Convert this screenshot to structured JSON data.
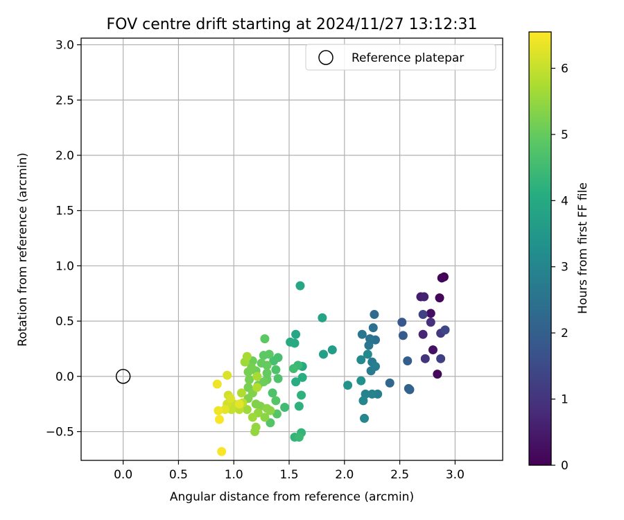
{
  "chart_data": {
    "type": "scatter",
    "title": "FOV centre drift starting at 2024/11/27 13:12:31",
    "xlabel": "Angular distance from reference (arcmin)",
    "ylabel": "Rotation from reference (arcmin)",
    "xlim": [
      -0.38,
      3.43
    ],
    "ylim": [
      -0.76,
      3.06
    ],
    "xticks": [
      0.0,
      0.5,
      1.0,
      1.5,
      2.0,
      2.5,
      3.0
    ],
    "xtick_labels": [
      "0.0",
      "0.5",
      "1.0",
      "1.5",
      "2.0",
      "2.5",
      "3.0"
    ],
    "yticks": [
      -0.5,
      0.0,
      0.5,
      1.0,
      1.5,
      2.0,
      2.5,
      3.0
    ],
    "ytick_labels": [
      "−0.5",
      "0.0",
      "0.5",
      "1.0",
      "1.5",
      "2.0",
      "2.5",
      "3.0"
    ],
    "grid": true,
    "colormap": "viridis",
    "colorbar": {
      "label": "Hours from first FF file",
      "range": [
        0,
        6.55
      ],
      "ticks": [
        0,
        1,
        2,
        3,
        4,
        5,
        6
      ],
      "tick_labels": [
        "0",
        "1",
        "2",
        "3",
        "4",
        "5",
        "6"
      ]
    },
    "legend": {
      "position": "top-right",
      "entries": [
        {
          "label": "Reference platepar",
          "marker": "open-circle"
        }
      ]
    },
    "reference_point": {
      "x": 0.0,
      "y": 0.0
    },
    "points": [
      {
        "x": 2.9,
        "y": 0.9,
        "c": 0.05
      },
      {
        "x": 2.88,
        "y": 0.89,
        "c": 0.1
      },
      {
        "x": 2.86,
        "y": 0.71,
        "c": 0.1
      },
      {
        "x": 2.84,
        "y": 0.02,
        "c": 0.15
      },
      {
        "x": 2.78,
        "y": 0.57,
        "c": 0.25
      },
      {
        "x": 2.8,
        "y": 0.24,
        "c": 0.3
      },
      {
        "x": 2.69,
        "y": 0.72,
        "c": 0.5
      },
      {
        "x": 2.72,
        "y": 0.72,
        "c": 0.6
      },
      {
        "x": 2.71,
        "y": 0.38,
        "c": 0.7
      },
      {
        "x": 2.78,
        "y": 0.49,
        "c": 0.9
      },
      {
        "x": 2.73,
        "y": 0.16,
        "c": 1.0
      },
      {
        "x": 2.87,
        "y": 0.39,
        "c": 1.1
      },
      {
        "x": 2.87,
        "y": 0.16,
        "c": 1.25
      },
      {
        "x": 2.71,
        "y": 0.56,
        "c": 1.3
      },
      {
        "x": 2.91,
        "y": 0.42,
        "c": 1.4
      },
      {
        "x": 2.52,
        "y": 0.49,
        "c": 1.8
      },
      {
        "x": 2.53,
        "y": 0.37,
        "c": 1.9
      },
      {
        "x": 2.57,
        "y": 0.14,
        "c": 2.0
      },
      {
        "x": 2.59,
        "y": -0.12,
        "c": 2.0
      },
      {
        "x": 2.58,
        "y": -0.11,
        "c": 2.1
      },
      {
        "x": 2.41,
        "y": -0.06,
        "c": 2.2
      },
      {
        "x": 2.27,
        "y": 0.56,
        "c": 2.3
      },
      {
        "x": 2.26,
        "y": 0.44,
        "c": 2.4
      },
      {
        "x": 2.28,
        "y": 0.33,
        "c": 2.4
      },
      {
        "x": 2.23,
        "y": 0.34,
        "c": 2.5
      },
      {
        "x": 2.22,
        "y": 0.28,
        "c": 2.6
      },
      {
        "x": 2.16,
        "y": 0.38,
        "c": 2.6
      },
      {
        "x": 2.25,
        "y": 0.13,
        "c": 2.7
      },
      {
        "x": 2.24,
        "y": 0.05,
        "c": 2.7
      },
      {
        "x": 2.28,
        "y": 0.09,
        "c": 2.8
      },
      {
        "x": 2.3,
        "y": -0.16,
        "c": 2.8
      },
      {
        "x": 2.25,
        "y": -0.16,
        "c": 2.9
      },
      {
        "x": 2.19,
        "y": -0.16,
        "c": 2.9
      },
      {
        "x": 2.17,
        "y": -0.22,
        "c": 3.0
      },
      {
        "x": 2.18,
        "y": -0.38,
        "c": 3.0
      },
      {
        "x": 2.15,
        "y": 0.15,
        "c": 3.1
      },
      {
        "x": 2.21,
        "y": 0.2,
        "c": 3.1
      },
      {
        "x": 2.15,
        "y": -0.04,
        "c": 3.3
      },
      {
        "x": 2.03,
        "y": -0.08,
        "c": 3.4
      },
      {
        "x": 1.89,
        "y": 0.24,
        "c": 3.6
      },
      {
        "x": 1.81,
        "y": 0.2,
        "c": 3.7
      },
      {
        "x": 1.8,
        "y": 0.53,
        "c": 3.8
      },
      {
        "x": 1.6,
        "y": 0.82,
        "c": 3.9
      },
      {
        "x": 1.56,
        "y": 0.38,
        "c": 3.9
      },
      {
        "x": 1.55,
        "y": 0.3,
        "c": 4.0
      },
      {
        "x": 1.51,
        "y": 0.31,
        "c": 4.0
      },
      {
        "x": 1.62,
        "y": 0.09,
        "c": 4.0
      },
      {
        "x": 1.62,
        "y": -0.01,
        "c": 4.1
      },
      {
        "x": 1.56,
        "y": -0.05,
        "c": 4.1
      },
      {
        "x": 1.61,
        "y": -0.17,
        "c": 4.2
      },
      {
        "x": 1.59,
        "y": -0.27,
        "c": 4.2
      },
      {
        "x": 1.61,
        "y": -0.51,
        "c": 4.3
      },
      {
        "x": 1.55,
        "y": -0.55,
        "c": 4.3
      },
      {
        "x": 1.59,
        "y": -0.55,
        "c": 4.4
      },
      {
        "x": 1.58,
        "y": 0.1,
        "c": 4.4
      },
      {
        "x": 1.54,
        "y": 0.07,
        "c": 4.5
      },
      {
        "x": 1.46,
        "y": -0.28,
        "c": 4.5
      },
      {
        "x": 1.4,
        "y": 0.17,
        "c": 4.6
      },
      {
        "x": 1.36,
        "y": 0.14,
        "c": 4.6
      },
      {
        "x": 1.38,
        "y": 0.06,
        "c": 4.7
      },
      {
        "x": 1.4,
        "y": -0.02,
        "c": 4.7
      },
      {
        "x": 1.35,
        "y": -0.15,
        "c": 4.7
      },
      {
        "x": 1.38,
        "y": -0.22,
        "c": 4.8
      },
      {
        "x": 1.39,
        "y": -0.34,
        "c": 4.8
      },
      {
        "x": 1.33,
        "y": -0.42,
        "c": 4.8
      },
      {
        "x": 1.32,
        "y": 0.2,
        "c": 4.9
      },
      {
        "x": 1.28,
        "y": 0.34,
        "c": 4.9
      },
      {
        "x": 1.27,
        "y": 0.19,
        "c": 4.9
      },
      {
        "x": 1.3,
        "y": 0.1,
        "c": 5.0
      },
      {
        "x": 1.25,
        "y": 0.12,
        "c": 5.0
      },
      {
        "x": 1.3,
        "y": 0.03,
        "c": 5.0
      },
      {
        "x": 1.3,
        "y": -0.03,
        "c": 5.0
      },
      {
        "x": 1.27,
        "y": -0.05,
        "c": 5.1
      },
      {
        "x": 1.22,
        "y": -0.08,
        "c": 5.1
      },
      {
        "x": 1.2,
        "y": 0.05,
        "c": 5.1
      },
      {
        "x": 1.17,
        "y": 0.14,
        "c": 5.1
      },
      {
        "x": 1.16,
        "y": 0.08,
        "c": 5.2
      },
      {
        "x": 1.13,
        "y": 0.04,
        "c": 5.2
      },
      {
        "x": 1.14,
        "y": -0.03,
        "c": 5.2
      },
      {
        "x": 1.13,
        "y": -0.1,
        "c": 5.2
      },
      {
        "x": 1.13,
        "y": -0.2,
        "c": 5.3
      },
      {
        "x": 1.17,
        "y": -0.15,
        "c": 5.3
      },
      {
        "x": 1.2,
        "y": -0.25,
        "c": 5.3
      },
      {
        "x": 1.24,
        "y": -0.27,
        "c": 5.3
      },
      {
        "x": 1.3,
        "y": -0.29,
        "c": 5.4
      },
      {
        "x": 1.33,
        "y": -0.31,
        "c": 5.4
      },
      {
        "x": 1.28,
        "y": -0.37,
        "c": 5.4
      },
      {
        "x": 1.22,
        "y": -0.33,
        "c": 5.5
      },
      {
        "x": 1.2,
        "y": -0.46,
        "c": 5.5
      },
      {
        "x": 1.19,
        "y": -0.5,
        "c": 5.5
      },
      {
        "x": 1.17,
        "y": -0.37,
        "c": 5.6
      },
      {
        "x": 1.12,
        "y": -0.3,
        "c": 5.6
      },
      {
        "x": 1.1,
        "y": 0.13,
        "c": 5.6
      },
      {
        "x": 1.12,
        "y": 0.18,
        "c": 5.7
      },
      {
        "x": 1.21,
        "y": 0.0,
        "c": 5.7
      },
      {
        "x": 1.21,
        "y": -0.1,
        "c": 5.8
      },
      {
        "x": 1.07,
        "y": -0.15,
        "c": 5.8
      },
      {
        "x": 1.08,
        "y": -0.24,
        "c": 5.9
      },
      {
        "x": 1.05,
        "y": -0.3,
        "c": 5.9
      },
      {
        "x": 1.0,
        "y": -0.25,
        "c": 6.0
      },
      {
        "x": 0.98,
        "y": -0.3,
        "c": 6.0
      },
      {
        "x": 0.95,
        "y": -0.17,
        "c": 6.1
      },
      {
        "x": 0.94,
        "y": -0.25,
        "c": 6.1
      },
      {
        "x": 0.94,
        "y": 0.01,
        "c": 6.2
      },
      {
        "x": 0.97,
        "y": -0.2,
        "c": 6.2
      },
      {
        "x": 0.92,
        "y": -0.3,
        "c": 6.3
      },
      {
        "x": 1.05,
        "y": -0.25,
        "c": 6.3
      },
      {
        "x": 0.85,
        "y": -0.07,
        "c": 6.4
      },
      {
        "x": 0.86,
        "y": -0.31,
        "c": 6.4
      },
      {
        "x": 0.87,
        "y": -0.39,
        "c": 6.5
      },
      {
        "x": 0.89,
        "y": -0.68,
        "c": 6.5
      }
    ]
  }
}
